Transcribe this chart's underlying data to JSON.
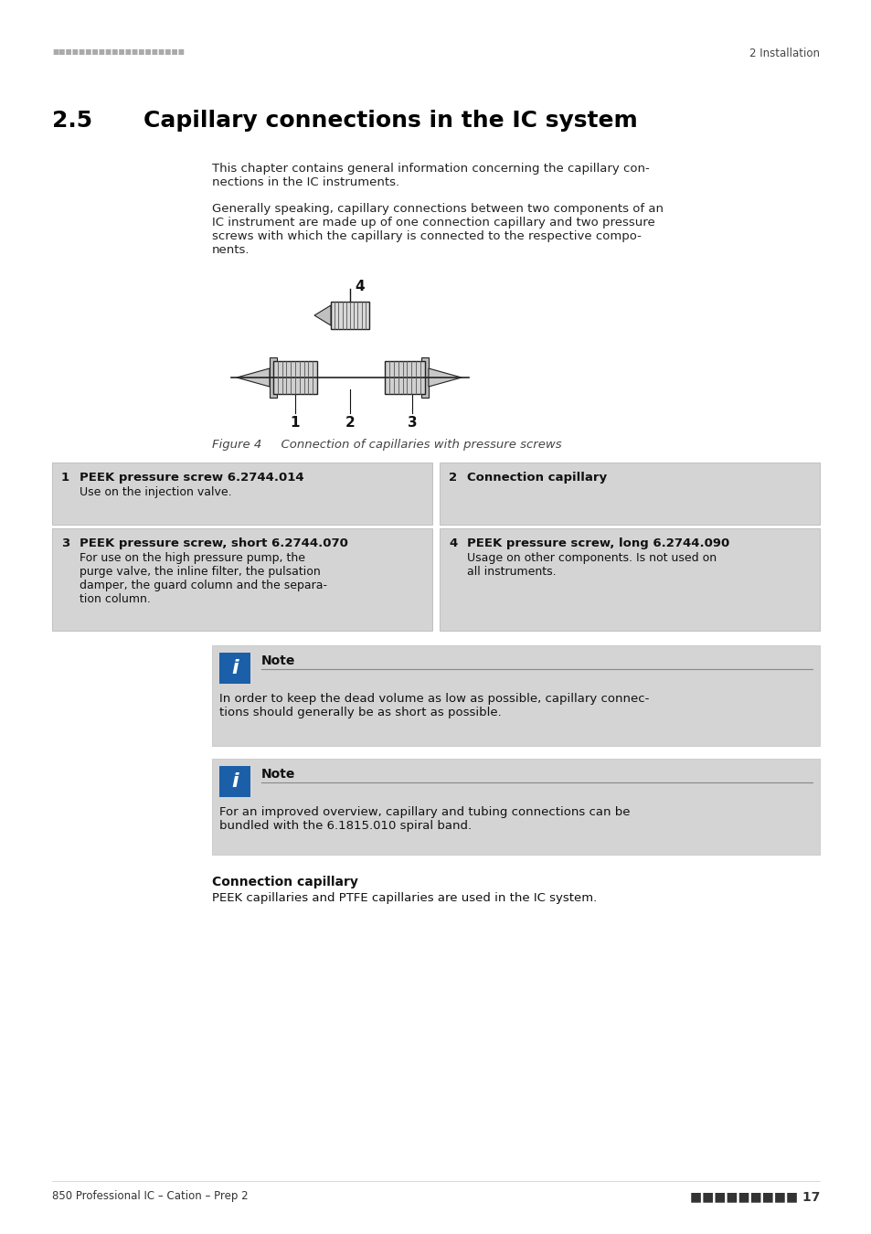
{
  "page_bg": "#ffffff",
  "header_dots": "■ ■ ■ ■ ■ ■ ■ ■ ■ ■ ■ ■ ■ ■ ■ ■ ■ ■ ■ ■",
  "header_right": "2 Installation",
  "section_num": "2.5",
  "section_title": "Capillary connections in the IC system",
  "para1": "This chapter contains general information concerning the capillary con-\nnections in the IC instruments.",
  "para2": "Generally speaking, capillary connections between two components of an\nIC instrument are made up of one connection capillary and two pressure\nscrews with which the capillary is connected to the respective compo-\nnents.",
  "fig_caption": "Figure 4     Connection of capillaries with pressure screws",
  "table_bg": "#d4d4d4",
  "table_border": "#b0b0b0",
  "items": [
    {
      "num": "1",
      "title": "PEEK pressure screw 6.2744.014",
      "body": "Use on the injection valve."
    },
    {
      "num": "2",
      "title": "Connection capillary",
      "body": ""
    },
    {
      "num": "3",
      "title": "PEEK pressure screw, short 6.2744.070",
      "body": "For use on the high pressure pump, the\npurge valve, the inline filter, the pulsation\ndamper, the guard column and the separa-\ntion column."
    },
    {
      "num": "4",
      "title": "PEEK pressure screw, long 6.2744.090",
      "body": "Usage on other components. Is not used on\nall instruments."
    }
  ],
  "note_bg": "#d4d4d4",
  "note_icon_bg": "#1a5fa8",
  "note1_title": "Note",
  "note1_body": "In order to keep the dead volume as low as possible, capillary connec-\ntions should generally be as short as possible.",
  "note2_title": "Note",
  "note2_body": "For an improved overview, capillary and tubing connections can be\nbundled with the 6.1815.010 spiral band.",
  "sub_title": "Connection capillary",
  "sub_body": "PEEK capillaries and PTFE capillaries are used in the IC system.",
  "footer_left": "850 Professional IC – Cation – Prep 2",
  "footer_right": "■■■■■■■■■ 17"
}
